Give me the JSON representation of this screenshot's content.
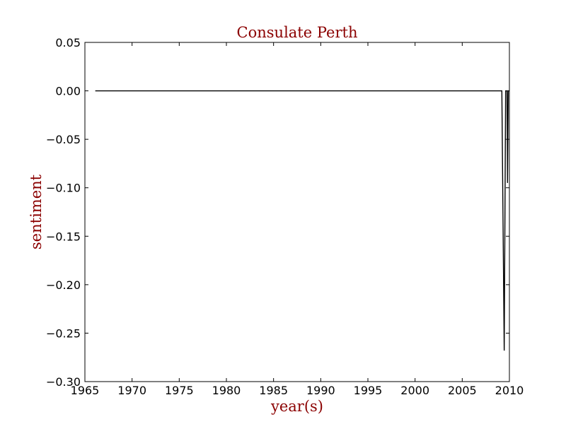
{
  "chart_data": {
    "type": "line",
    "title": "Consulate Perth",
    "xlabel": "year(s)",
    "ylabel": "sentiment",
    "xlim": [
      1965,
      2010
    ],
    "ylim": [
      -0.3,
      0.05
    ],
    "grid": false,
    "x_ticks": [
      1965,
      1970,
      1975,
      1980,
      1985,
      1990,
      1995,
      2000,
      2005,
      2010
    ],
    "x_tick_labels": [
      "1965",
      "1970",
      "1975",
      "1980",
      "1985",
      "1990",
      "1995",
      "2000",
      "2005",
      "2010"
    ],
    "y_ticks": [
      0.05,
      0.0,
      -0.05,
      -0.1,
      -0.15,
      -0.2,
      -0.25,
      -0.3
    ],
    "y_tick_labels": [
      "0.05",
      "0.00",
      "−0.05",
      "−0.10",
      "−0.15",
      "−0.20",
      "−0.25",
      "−0.30"
    ],
    "series": [
      {
        "color": "#000000",
        "points": [
          [
            1966.1,
            0.0
          ],
          [
            2009.2,
            0.0
          ],
          [
            2009.45,
            -0.268
          ],
          [
            2009.6,
            0.0
          ],
          [
            2009.75,
            0.0
          ],
          [
            2009.8,
            -0.095
          ],
          [
            2009.88,
            0.0
          ],
          [
            2010.0,
            0.0
          ]
        ]
      }
    ]
  },
  "colors": {
    "title": "#8b0000",
    "axis_label": "#8b0000",
    "line": "#000000"
  }
}
